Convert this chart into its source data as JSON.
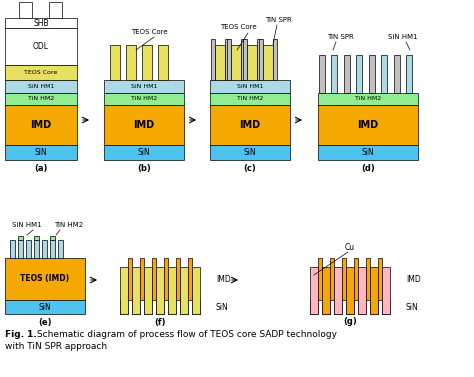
{
  "colors": {
    "SIN": "#4dc3f0",
    "IMD": "#f5a800",
    "TIN_HM2": "#90ee90",
    "SIN_HM1": "#add8e6",
    "TEOS": "#e8e060",
    "ODL": "#ffffff",
    "SHB": "#ffffff",
    "PR": "#ffffff",
    "TIN_SPR": "#c0c0c0",
    "Cu": "#ffb6c1",
    "bg": "#ffffff"
  },
  "fig_caption_bold": "Fig. 1.",
  "fig_caption_rest": " Schematic diagram of process flow of TEOS core SADP technology",
  "fig_caption_line2": "with TiN SPR approach"
}
